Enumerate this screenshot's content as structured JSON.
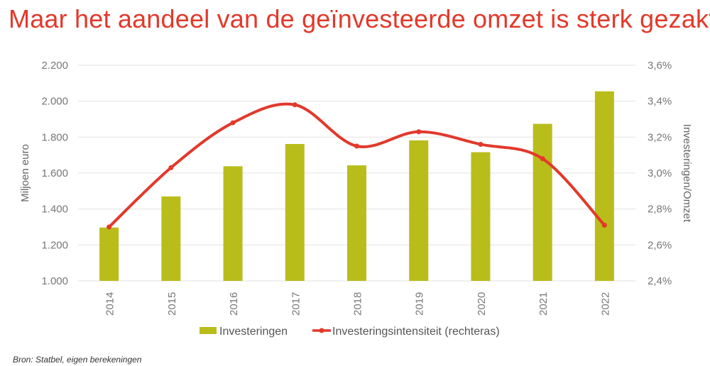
{
  "title": "Maar het aandeel van de geïnvesteerde omzet is sterk gezakt",
  "source": "Bron: Statbel, eigen berekeningen",
  "chart_data": {
    "type": "bar+line",
    "categories": [
      "2014",
      "2015",
      "2016",
      "2017",
      "2018",
      "2019",
      "2020",
      "2021",
      "2022"
    ],
    "series": [
      {
        "name": "Investeringen",
        "type": "bar",
        "axis": "left",
        "color": "#b9bd1a",
        "values": [
          1297,
          1470,
          1638,
          1762,
          1643,
          1782,
          1716,
          1874,
          2055
        ]
      },
      {
        "name": "Investeringsintensiteit (rechteras)",
        "type": "line",
        "axis": "right",
        "smooth": true,
        "color": "#e2392b",
        "values": [
          2.7,
          3.03,
          3.28,
          3.38,
          3.15,
          3.23,
          3.16,
          3.08,
          2.71
        ]
      }
    ],
    "ylabel": "Miljoen euro",
    "ylim": [
      1000,
      2200
    ],
    "yticks": [
      "1.000",
      "1.200",
      "1.400",
      "1.600",
      "1.800",
      "2.000",
      "2.200"
    ],
    "y2label": "Investeringen/Omzet",
    "y2lim": [
      2.4,
      3.6
    ],
    "y2ticks": [
      "2,4%",
      "2,6%",
      "2,8%",
      "3,0%",
      "3,2%",
      "3,4%",
      "3,6%"
    ],
    "grid": true,
    "legend": "bottom"
  }
}
